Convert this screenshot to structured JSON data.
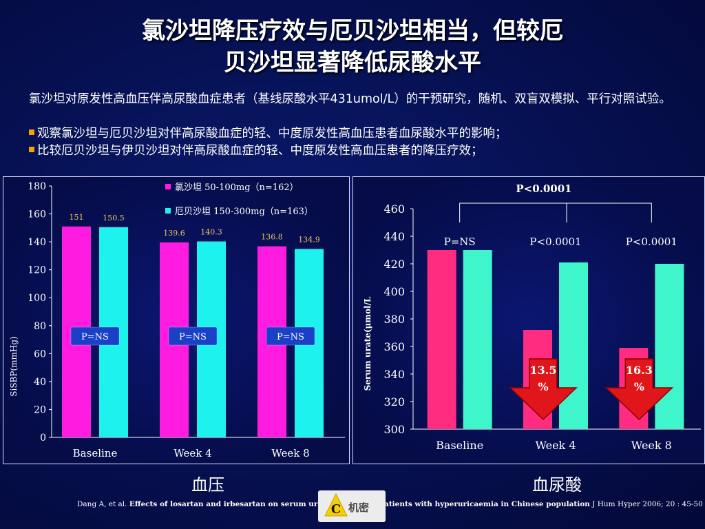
{
  "title": {
    "line1": "氯沙坦降压疗效与厄贝沙坦相当，但较厄",
    "line2": "贝沙坦显著降低尿酸水平"
  },
  "intro": "氯沙坦对原发性高血压伴高尿酸血症患者（基线尿酸水平431umol/L）的干预研究，随机、双盲双模拟、平行对照试验。",
  "bullets": [
    "观察氯沙坦与厄贝沙坦对伴高尿酸血症的轻、中度原发性高血压患者血尿酸水平的影响；",
    "比较厄贝沙坦与伊贝沙坦对伴高尿酸血症的轻、中度原发性高血压患者的降压疗效；"
  ],
  "colors": {
    "losartan": "#ff1ce0",
    "irbesartan": "#1ef2ee",
    "urate_a": "#ff2c80",
    "urate_b": "#3ff5cc",
    "bullet": "#f0a500",
    "pns_box": "#1a40c8"
  },
  "chart_data": [
    {
      "type": "bar",
      "categories": [
        "Baseline",
        "Week 4",
        "Week 8"
      ],
      "series": [
        {
          "name": "氯沙坦 50-100mg（n=162）",
          "values": [
            151,
            139.6,
            136.8
          ]
        },
        {
          "name": "厄贝沙坦 150-300mg（n=163）",
          "values": [
            150.5,
            140.3,
            134.9
          ]
        }
      ],
      "value_labels": [
        [
          "151",
          "139.6",
          "136.8"
        ],
        [
          "150.5",
          "140.3",
          "134.9"
        ]
      ],
      "ylabel": "SiSBP(mmHg)",
      "ylim": [
        0,
        180
      ],
      "yticks": [
        0,
        20,
        40,
        60,
        80,
        100,
        120,
        140,
        160,
        180
      ],
      "annotations": [
        "P=NS",
        "P=NS",
        "P=NS"
      ],
      "legend": "top-right",
      "caption": "血压"
    },
    {
      "type": "bar",
      "categories": [
        "Baseline",
        "Week 4",
        "Week 8"
      ],
      "series": [
        {
          "values": [
            430,
            372,
            359
          ]
        },
        {
          "values": [
            430,
            421,
            420
          ]
        }
      ],
      "ylabel": "Serum urate(μmol/L",
      "ylim": [
        300,
        460
      ],
      "yticks": [
        300,
        320,
        340,
        360,
        380,
        400,
        420,
        440,
        460
      ],
      "p_labels": [
        "P=NS",
        "P<0.0001",
        "P<0.0001"
      ],
      "overall_p": "P<0.0001",
      "reduction_labels": [
        {
          "category": "Week 4",
          "line1": "13.5",
          "line2": "%"
        },
        {
          "category": "Week 8",
          "line1": "16.3",
          "line2": "%"
        }
      ],
      "caption": "血尿酸"
    }
  ],
  "citation": {
    "authors": "Dang A, et al. ",
    "title": "Effects of losartan and irbesartan on serum uric ac",
    "title2": "patients with hyperuricaemia in Chinese population",
    "journal": " J Hum Hyper 2006; 20 : 45-50"
  },
  "watermark": {
    "letter": "C",
    "text": "机密"
  }
}
